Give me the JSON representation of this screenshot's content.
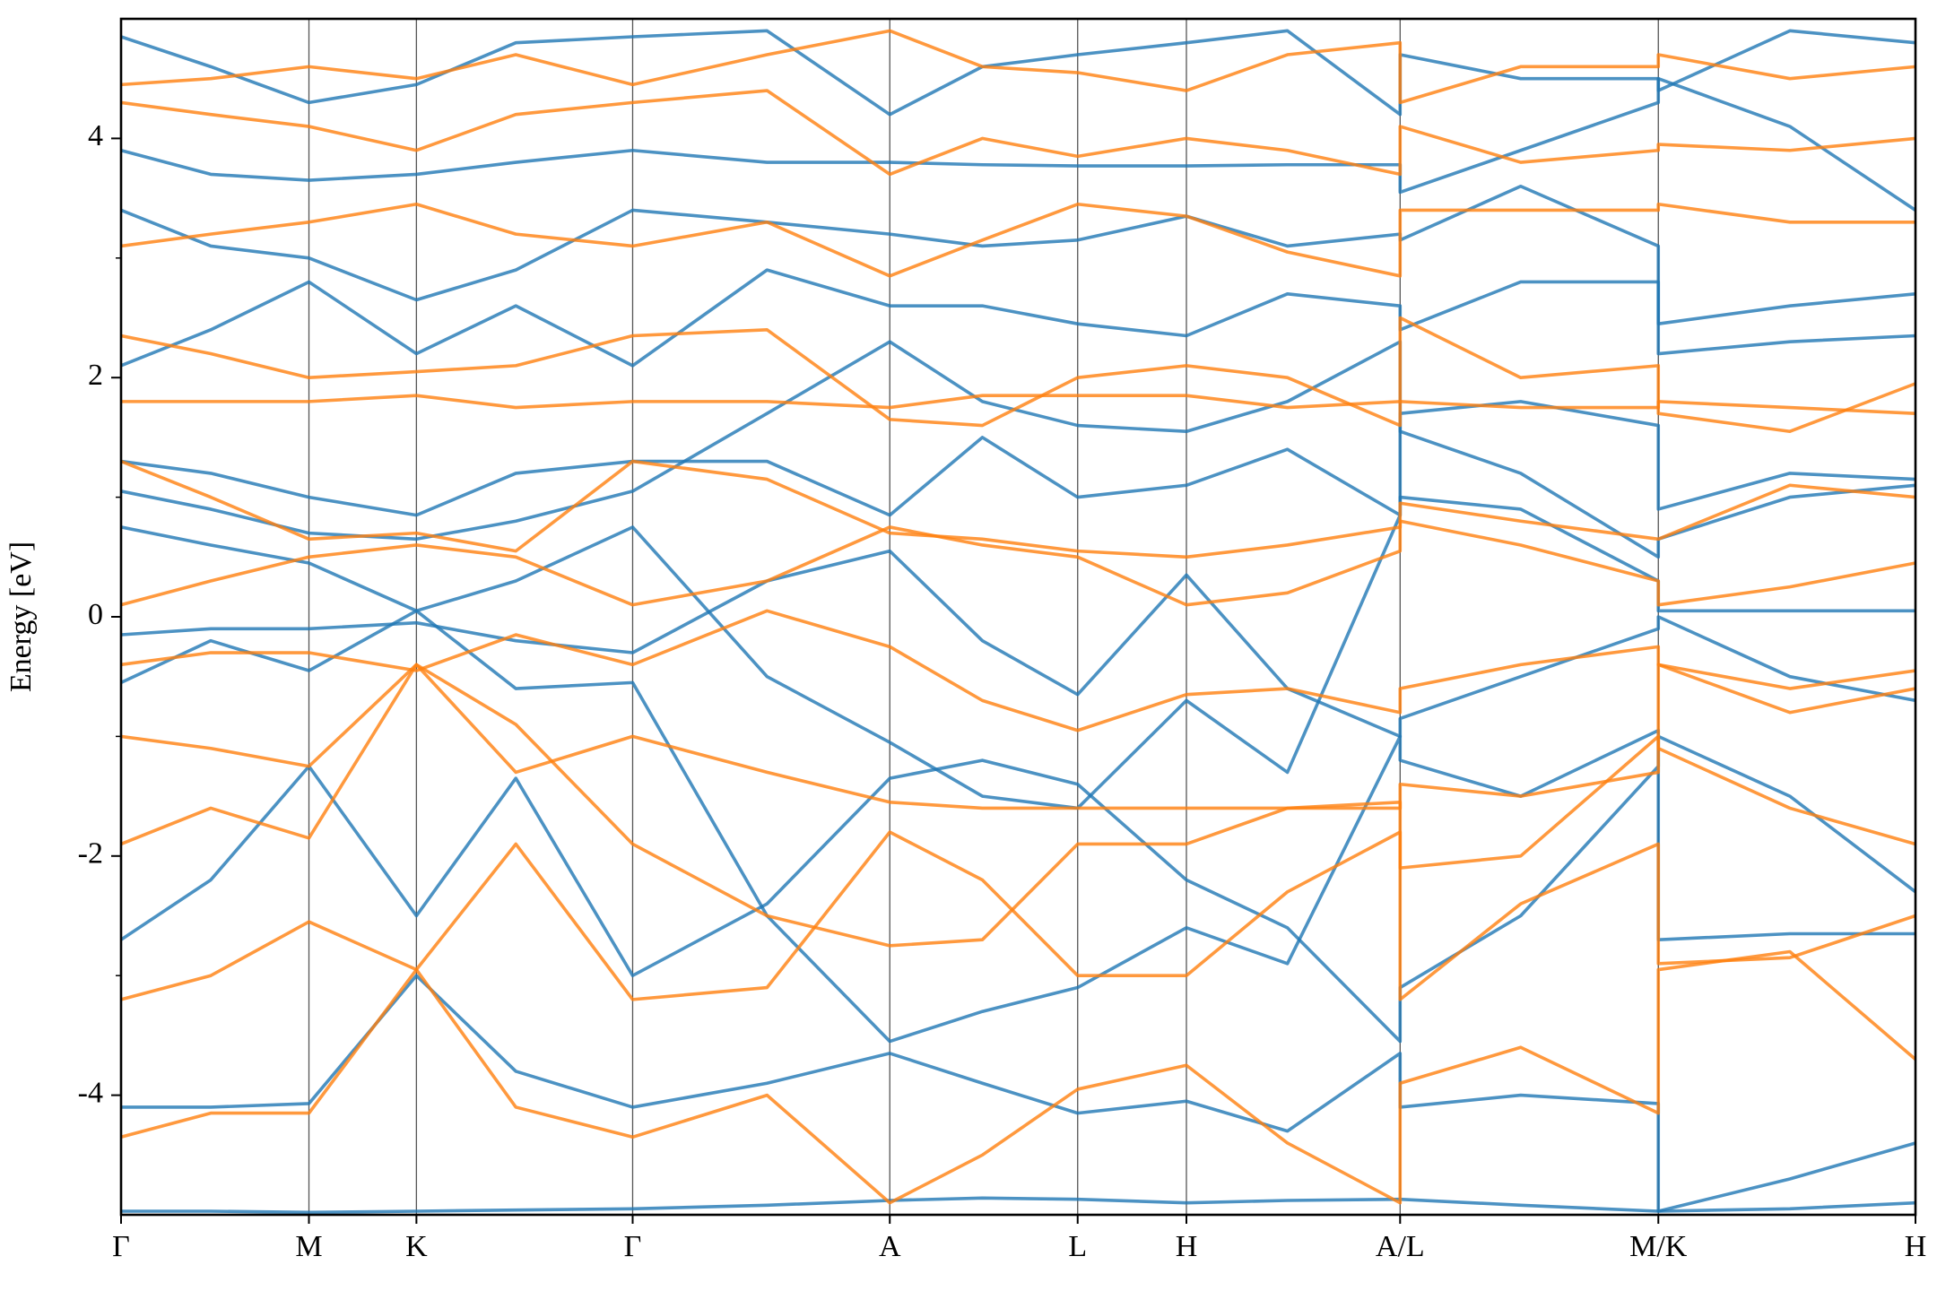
{
  "chart_data": {
    "type": "line",
    "ylabel": "Energy [eV]",
    "xlim": [
      0,
      1
    ],
    "ylim": [
      -5,
      5
    ],
    "xticks": [
      {
        "value": 0,
        "label": "Γ"
      },
      {
        "value": 0.1047,
        "label": "M"
      },
      {
        "value": 0.1646,
        "label": "K"
      },
      {
        "value": 0.2851,
        "label": "Γ"
      },
      {
        "value": 0.4284,
        "label": "A"
      },
      {
        "value": 0.5331,
        "label": "L"
      },
      {
        "value": 0.5937,
        "label": "H"
      },
      {
        "value": 0.7128,
        "label": "A/L"
      },
      {
        "value": 0.8567,
        "label": "M/K"
      },
      {
        "value": 1,
        "label": "H"
      }
    ],
    "yticks": [
      -4,
      -2,
      0,
      2,
      4
    ],
    "yminorticks": [
      -3,
      -1,
      1,
      3
    ],
    "x": [
      0,
      0.05,
      0.1047,
      0.1646,
      0.22,
      0.2851,
      0.36,
      0.4284,
      0.48,
      0.5331,
      0.5937,
      0.65,
      0.7128,
      0.7128,
      0.78,
      0.8567,
      0.8567,
      0.93,
      1
    ],
    "series": [
      {
        "color": "#1f77b4",
        "values": [
          -4.97,
          -4.97,
          -4.98,
          -4.97,
          -4.96,
          -4.95,
          -4.92,
          -4.88,
          -4.86,
          -4.87,
          -4.9,
          -4.88,
          -4.87,
          -4.87,
          -4.92,
          -4.97,
          -4.97,
          -4.95,
          -4.9
        ]
      },
      {
        "color": "#1f77b4",
        "values": [
          -4.1,
          -4.1,
          -4.07,
          -3.0,
          -3.8,
          -4.1,
          -3.9,
          -3.65,
          -3.9,
          -4.15,
          -4.05,
          -4.3,
          -3.65,
          -4.1,
          -4.0,
          -4.07,
          -4.97,
          -4.7,
          -4.4
        ]
      },
      {
        "color": "#1f77b4",
        "values": [
          -2.7,
          -2.2,
          -1.25,
          -2.5,
          -1.35,
          -3.0,
          -2.4,
          -1.35,
          -1.2,
          -1.4,
          -2.2,
          -2.6,
          -3.55,
          -3.1,
          -2.5,
          -1.25,
          -1.0,
          -1.5,
          -2.3
        ]
      },
      {
        "color": "#1f77b4",
        "values": [
          -0.55,
          -0.2,
          -0.45,
          0.05,
          -0.6,
          -0.55,
          -2.5,
          -3.55,
          -3.3,
          -3.1,
          -2.6,
          -2.9,
          -1.0,
          -1.2,
          -1.5,
          -0.95,
          -2.7,
          -2.65,
          -2.65
        ]
      },
      {
        "color": "#1f77b4",
        "values": [
          -0.15,
          -0.1,
          -0.1,
          -0.05,
          -0.2,
          -0.3,
          0.3,
          0.55,
          -0.2,
          -0.65,
          0.35,
          -0.6,
          -1.0,
          -0.85,
          -0.5,
          -0.1,
          0.0,
          -0.5,
          -0.7
        ]
      },
      {
        "color": "#1f77b4",
        "values": [
          0.75,
          0.6,
          0.45,
          0.05,
          0.3,
          0.75,
          -0.5,
          -1.05,
          -1.5,
          -1.6,
          -0.7,
          -1.3,
          0.85,
          1.0,
          0.9,
          0.3,
          0.05,
          0.05,
          0.05
        ]
      },
      {
        "color": "#1f77b4",
        "values": [
          1.05,
          0.9,
          0.7,
          0.65,
          0.8,
          1.05,
          1.7,
          2.3,
          1.8,
          1.6,
          1.55,
          1.8,
          2.3,
          1.55,
          1.2,
          0.5,
          0.65,
          1.0,
          1.1
        ]
      },
      {
        "color": "#1f77b4",
        "values": [
          1.3,
          1.2,
          1.0,
          0.85,
          1.2,
          1.3,
          1.3,
          0.85,
          1.5,
          1.0,
          1.1,
          1.4,
          0.85,
          1.7,
          1.8,
          1.6,
          0.9,
          1.2,
          1.15
        ]
      },
      {
        "color": "#1f77b4",
        "values": [
          2.1,
          2.4,
          2.8,
          2.2,
          2.6,
          2.1,
          2.9,
          2.6,
          2.6,
          2.45,
          2.35,
          2.7,
          2.6,
          2.4,
          2.8,
          2.8,
          2.45,
          2.6,
          2.7
        ]
      },
      {
        "color": "#1f77b4",
        "values": [
          3.4,
          3.1,
          3.0,
          2.65,
          2.9,
          3.4,
          3.3,
          3.2,
          3.1,
          3.15,
          3.35,
          3.1,
          3.2,
          3.15,
          3.6,
          3.1,
          2.2,
          2.3,
          2.35
        ]
      },
      {
        "color": "#1f77b4",
        "values": [
          3.9,
          3.7,
          3.65,
          3.7,
          3.8,
          3.9,
          3.8,
          3.8,
          3.78,
          3.77,
          3.77,
          3.78,
          3.78,
          3.55,
          3.9,
          4.3,
          4.5,
          4.1,
          3.4
        ]
      },
      {
        "color": "#1f77b4",
        "values": [
          4.85,
          4.6,
          4.3,
          4.45,
          4.8,
          4.85,
          4.9,
          4.2,
          4.6,
          4.7,
          4.8,
          4.9,
          4.2,
          4.7,
          4.5,
          4.5,
          4.4,
          4.9,
          4.8
        ]
      },
      {
        "color": "#ff7f0e",
        "values": [
          -4.35,
          -4.15,
          -4.15,
          -2.95,
          -4.1,
          -4.35,
          -4.0,
          -4.9,
          -4.5,
          -3.95,
          -3.75,
          -4.4,
          -4.9,
          -3.9,
          -3.6,
          -4.15,
          -2.95,
          -2.8,
          -3.7
        ]
      },
      {
        "color": "#ff7f0e",
        "values": [
          -3.2,
          -3.0,
          -2.55,
          -2.95,
          -1.9,
          -3.2,
          -3.1,
          -1.8,
          -2.2,
          -3.0,
          -3.0,
          -2.3,
          -1.8,
          -3.2,
          -2.4,
          -1.9,
          -2.9,
          -2.85,
          -2.5
        ]
      },
      {
        "color": "#ff7f0e",
        "values": [
          -1.9,
          -1.6,
          -1.85,
          -0.4,
          -0.9,
          -1.9,
          -2.5,
          -2.75,
          -2.7,
          -1.9,
          -1.9,
          -1.6,
          -1.55,
          -2.1,
          -2.0,
          -1.0,
          -1.1,
          -1.6,
          -1.9
        ]
      },
      {
        "color": "#ff7f0e",
        "values": [
          -1.0,
          -1.1,
          -1.25,
          -0.4,
          -1.3,
          -1.0,
          -1.3,
          -1.55,
          -1.6,
          -1.6,
          -1.6,
          -1.6,
          -1.6,
          -1.4,
          -1.5,
          -1.3,
          -0.4,
          -0.8,
          -0.6
        ]
      },
      {
        "color": "#ff7f0e",
        "values": [
          -0.4,
          -0.3,
          -0.3,
          -0.45,
          -0.15,
          -0.4,
          0.05,
          -0.25,
          -0.7,
          -0.95,
          -0.65,
          -0.6,
          -0.8,
          -0.6,
          -0.4,
          -0.25,
          -0.4,
          -0.6,
          -0.45
        ]
      },
      {
        "color": "#ff7f0e",
        "values": [
          0.1,
          0.3,
          0.5,
          0.6,
          0.5,
          0.1,
          0.3,
          0.75,
          0.6,
          0.5,
          0.1,
          0.2,
          0.55,
          0.8,
          0.6,
          0.3,
          0.1,
          0.25,
          0.45
        ]
      },
      {
        "color": "#ff7f0e",
        "values": [
          1.3,
          1.0,
          0.65,
          0.7,
          0.55,
          1.3,
          1.15,
          0.7,
          0.65,
          0.55,
          0.5,
          0.6,
          0.75,
          0.95,
          0.8,
          0.65,
          0.65,
          1.1,
          1.0
        ]
      },
      {
        "color": "#ff7f0e",
        "values": [
          1.8,
          1.8,
          1.8,
          1.85,
          1.75,
          1.8,
          1.8,
          1.75,
          1.85,
          1.85,
          1.85,
          1.75,
          1.8,
          1.8,
          1.75,
          1.75,
          1.8,
          1.75,
          1.7
        ]
      },
      {
        "color": "#ff7f0e",
        "values": [
          2.35,
          2.2,
          2.0,
          2.05,
          2.1,
          2.35,
          2.4,
          1.65,
          1.6,
          2.0,
          2.1,
          2.0,
          1.6,
          2.5,
          2.0,
          2.1,
          1.7,
          1.55,
          1.95
        ]
      },
      {
        "color": "#ff7f0e",
        "values": [
          3.1,
          3.2,
          3.3,
          3.45,
          3.2,
          3.1,
          3.3,
          2.85,
          3.15,
          3.45,
          3.35,
          3.05,
          2.85,
          3.4,
          3.4,
          3.4,
          3.45,
          3.3,
          3.3
        ]
      },
      {
        "color": "#ff7f0e",
        "values": [
          4.3,
          4.2,
          4.1,
          3.9,
          4.2,
          4.3,
          4.4,
          3.7,
          4.0,
          3.85,
          4.0,
          3.9,
          3.7,
          4.1,
          3.8,
          3.9,
          3.95,
          3.9,
          4.0
        ]
      },
      {
        "color": "#ff7f0e",
        "values": [
          4.45,
          4.5,
          4.6,
          4.5,
          4.7,
          4.45,
          4.7,
          4.9,
          4.6,
          4.55,
          4.4,
          4.7,
          4.8,
          4.3,
          4.6,
          4.6,
          4.7,
          4.5,
          4.6
        ]
      }
    ],
    "grid": true
  }
}
